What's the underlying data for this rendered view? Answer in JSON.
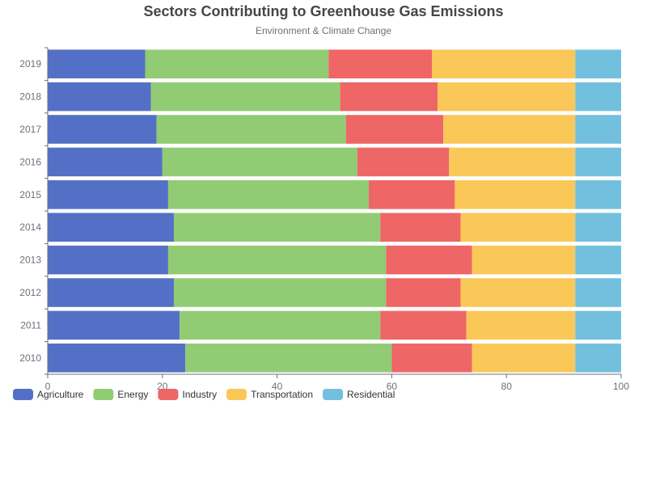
{
  "chart_data": {
    "type": "bar",
    "orientation": "horizontal",
    "stacked": true,
    "title": "Sectors Contributing to Greenhouse Gas Emissions",
    "subtitle": "Environment & Climate Change",
    "categories": [
      "2010",
      "2011",
      "2012",
      "2013",
      "2014",
      "2015",
      "2016",
      "2017",
      "2018",
      "2019"
    ],
    "series": [
      {
        "name": "Agriculture",
        "color": "#5470c6",
        "values": [
          24,
          23,
          22,
          21,
          22,
          21,
          20,
          19,
          18,
          17
        ]
      },
      {
        "name": "Energy",
        "color": "#91cc75",
        "values": [
          36,
          35,
          37,
          38,
          36,
          35,
          34,
          33,
          33,
          32
        ]
      },
      {
        "name": "Industry",
        "color": "#ee6666",
        "values": [
          14,
          15,
          13,
          15,
          14,
          15,
          16,
          17,
          17,
          18
        ]
      },
      {
        "name": "Transportation",
        "color": "#fac858",
        "values": [
          18,
          19,
          20,
          18,
          20,
          21,
          22,
          23,
          24,
          25
        ]
      },
      {
        "name": "Residential",
        "color": "#73c0de",
        "values": [
          8,
          8,
          8,
          8,
          8,
          8,
          8,
          8,
          8,
          8
        ]
      }
    ],
    "xlim": [
      0,
      100
    ],
    "x_ticks": [
      "0",
      "20",
      "40",
      "60",
      "80",
      "100"
    ],
    "legend_position": "bottom-left",
    "grid": false
  }
}
